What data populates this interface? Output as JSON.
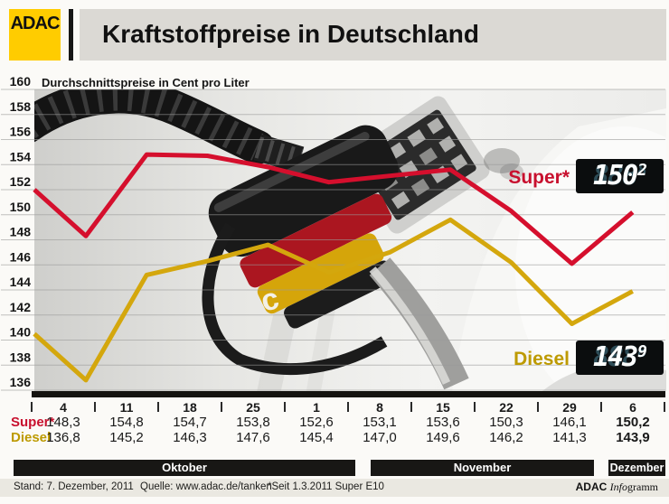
{
  "header": {
    "logo_text": "ADAC",
    "title": "Kraftstoffpreise in Deutschland"
  },
  "chart_data": {
    "type": "line",
    "title": "Kraftstoffpreise in Deutschland",
    "subtitle": "Durchschnittspreise in Cent pro Liter",
    "unit": "Cent pro Liter",
    "ylim": [
      136,
      160
    ],
    "ytick_step": 2,
    "yticks": [
      160,
      158,
      156,
      154,
      152,
      150,
      148,
      146,
      144,
      142,
      140,
      138,
      136
    ],
    "grid": true,
    "categories": [
      "4",
      "11",
      "18",
      "25",
      "1",
      "8",
      "15",
      "22",
      "29",
      "6"
    ],
    "month_groups": [
      {
        "label": "Oktober",
        "count": 4
      },
      {
        "label": "November",
        "count": 5
      },
      {
        "label": "Dezember",
        "count": 1
      }
    ],
    "series": [
      {
        "name": "Super*",
        "color": "#d50f2d",
        "values": [
          148.3,
          154.8,
          154.7,
          153.8,
          152.6,
          153.1,
          153.6,
          150.3,
          146.1,
          150.2
        ],
        "lead_in_from_left_edge": 152.0,
        "current_display": "150.2",
        "display": {
          "int": "150",
          "dec": "2"
        }
      },
      {
        "name": "Diesel",
        "color": "#d4a70d",
        "values": [
          136.8,
          145.2,
          146.3,
          147.6,
          145.4,
          147.0,
          149.6,
          146.2,
          141.3,
          143.9
        ],
        "lead_in_from_left_edge": 140.5,
        "current_display": "143.9",
        "display": {
          "int": "143",
          "dec": "9"
        }
      }
    ]
  },
  "table": {
    "dates": [
      "4",
      "11",
      "18",
      "25",
      "1",
      "8",
      "15",
      "22",
      "29",
      "6"
    ],
    "rows": [
      {
        "label": "Super*",
        "values": [
          "148,3",
          "154,8",
          "154,7",
          "153,8",
          "152,6",
          "153,1",
          "153,6",
          "150,3",
          "146,1",
          "150,2"
        ]
      },
      {
        "label": "Diesel",
        "values": [
          "136,8",
          "145,2",
          "146,3",
          "147,6",
          "145,4",
          "147,0",
          "149,6",
          "146,2",
          "141,3",
          "143,9"
        ]
      }
    ],
    "bold_last_column": true
  },
  "month_bars": {
    "okt": "Oktober",
    "nov": "November",
    "dez": "Dezember"
  },
  "footer": {
    "stand": "Stand: 7. Dezember, 2011",
    "quelle": "Quelle: www.adac.de/tanken",
    "note": "*Seit 1.3.2011 Super E10",
    "credit_bold": "ADAC",
    "credit_italic": "Info",
    "credit_rest": "gramm"
  },
  "colors": {
    "adac_yellow": "#FFCC00",
    "super_red": "#c8102e",
    "diesel_gold": "#bd9a00",
    "line_red": "#d50f2d",
    "line_gold": "#d4a70d",
    "month_bar": "#181715",
    "display_bg": "#0b0d0e",
    "display_ghost": "#2d4c57",
    "display_lit": "#ffffff"
  }
}
